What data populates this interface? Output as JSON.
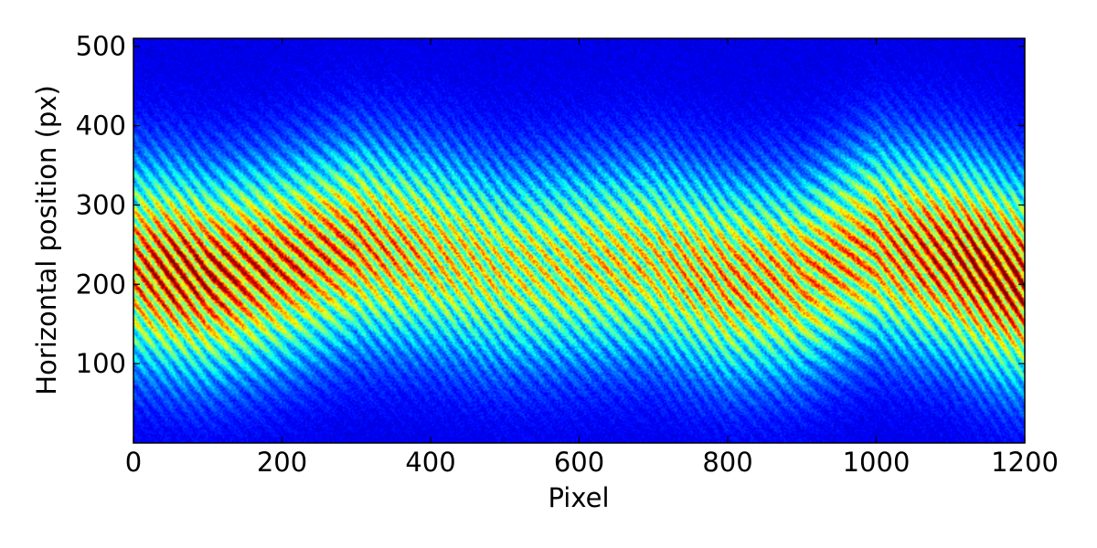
{
  "chart_data": {
    "type": "heatmap",
    "title": "",
    "xlabel": "Pixel",
    "ylabel": "Horizontal position (px)",
    "xlim": [
      0,
      1200
    ],
    "ylim": [
      0,
      510
    ],
    "x_ticks": [
      0,
      200,
      400,
      600,
      800,
      1000,
      1200
    ],
    "x_tick_labels": [
      "0",
      "200",
      "400",
      "600",
      "800",
      "1000",
      "1200"
    ],
    "y_ticks": [
      100,
      200,
      300,
      400,
      500
    ],
    "y_tick_labels": [
      "100",
      "200",
      "300",
      "400",
      "500"
    ],
    "colormap": "jet",
    "grid": false,
    "fringe_period_px": 21,
    "beam_center_profile": {
      "x": [
        0,
        100,
        200,
        300,
        400,
        500,
        600,
        700,
        800,
        900,
        1000,
        1100,
        1200
      ],
      "y": [
        225,
        210,
        225,
        250,
        240,
        220,
        225,
        230,
        205,
        210,
        250,
        235,
        200
      ]
    },
    "beam_peak_intensity_profile": {
      "x": [
        0,
        50,
        100,
        200,
        300,
        400,
        500,
        600,
        700,
        800,
        900,
        1000,
        1100,
        1150,
        1200
      ],
      "intensity": [
        0.75,
        0.88,
        0.85,
        0.78,
        0.72,
        0.62,
        0.55,
        0.56,
        0.6,
        0.68,
        0.66,
        0.7,
        0.85,
        0.95,
        0.9
      ]
    }
  }
}
